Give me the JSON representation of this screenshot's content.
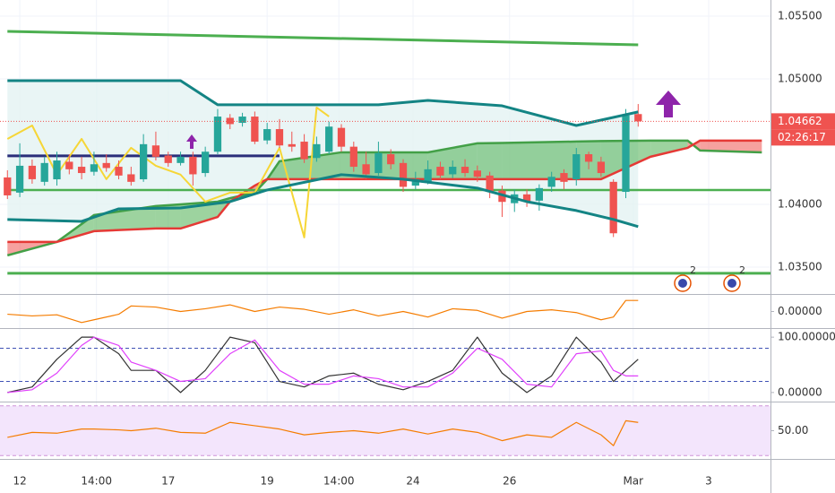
{
  "x_axis": {
    "xlim": [
      -0.6,
      61.7
    ],
    "ticks": [
      {
        "value": 1,
        "label": "12"
      },
      {
        "value": 7.2,
        "label": "14:00"
      },
      {
        "value": 13,
        "label": "17"
      },
      {
        "value": 21,
        "label": "19"
      },
      {
        "value": 26.8,
        "label": "14:00"
      },
      {
        "value": 32.8,
        "label": "24"
      },
      {
        "value": 40.6,
        "label": "26"
      },
      {
        "value": 50.6,
        "label": "Mar"
      },
      {
        "value": 56.7,
        "label": "3"
      }
    ]
  },
  "chart_data": [
    {
      "type": "candlestick",
      "ylim": [
        1.03286,
        1.05629
      ],
      "grid": true,
      "yticks": [
        {
          "value": 1.055,
          "label": "1.05500"
        },
        {
          "value": 1.05,
          "label": "1.05000"
        },
        {
          "value": 1.04,
          "label": "1.04000"
        },
        {
          "value": 1.035,
          "label": "1.03500"
        }
      ],
      "up_color": "#26a69a",
      "down_color": "#ef5350",
      "open": [
        1.04215,
        1.04094,
        1.04308,
        1.0418,
        1.042,
        1.0434,
        1.043,
        1.0426,
        1.0433,
        1.043,
        1.0424,
        1.042,
        1.0447,
        1.0439,
        1.0433,
        1.0438,
        1.0425,
        1.0442,
        1.0469,
        1.0465,
        1.047,
        1.0451,
        1.046,
        1.0448,
        1.045,
        1.0437,
        1.0442,
        1.0461,
        1.0446,
        1.0432,
        1.0425,
        1.044,
        1.0433,
        1.0415,
        1.0418,
        1.043,
        1.0424,
        1.043,
        1.0427,
        1.0423,
        1.0411,
        1.0401,
        1.0408,
        1.0403,
        1.0414,
        1.0425,
        1.042,
        1.044,
        1.0434,
        1.0418,
        1.041,
        1.0472
      ],
      "close": [
        1.04072,
        1.04308,
        1.04201,
        1.0433,
        1.0435,
        1.0428,
        1.0425,
        1.0432,
        1.0429,
        1.0423,
        1.0418,
        1.0448,
        1.0438,
        1.0433,
        1.0438,
        1.0424,
        1.0442,
        1.047,
        1.0464,
        1.047,
        1.045,
        1.046,
        1.0447,
        1.0446,
        1.0436,
        1.0448,
        1.0462,
        1.0446,
        1.043,
        1.0424,
        1.0441,
        1.0432,
        1.0414,
        1.042,
        1.0428,
        1.0423,
        1.043,
        1.0425,
        1.0422,
        1.041,
        1.0402,
        1.0408,
        1.0402,
        1.0413,
        1.0422,
        1.0418,
        1.044,
        1.0434,
        1.0425,
        1.0377,
        1.0471,
        1.04662
      ],
      "high": [
        1.04272,
        1.04487,
        1.04358,
        1.0438,
        1.0442,
        1.044,
        1.0438,
        1.0442,
        1.044,
        1.0435,
        1.043,
        1.0456,
        1.0458,
        1.0442,
        1.0442,
        1.0442,
        1.0446,
        1.0476,
        1.0472,
        1.0473,
        1.0474,
        1.0465,
        1.0468,
        1.0458,
        1.0456,
        1.0454,
        1.0466,
        1.0464,
        1.045,
        1.0442,
        1.045,
        1.0444,
        1.0436,
        1.0426,
        1.0435,
        1.0434,
        1.0435,
        1.0436,
        1.0431,
        1.0426,
        1.0415,
        1.0412,
        1.0412,
        1.0416,
        1.0426,
        1.0428,
        1.0445,
        1.0442,
        1.0438,
        1.042,
        1.0476,
        1.048
      ],
      "low": [
        1.04043,
        1.04058,
        1.04165,
        1.0415,
        1.0415,
        1.0424,
        1.042,
        1.0423,
        1.0426,
        1.042,
        1.0415,
        1.0418,
        1.0435,
        1.043,
        1.0431,
        1.0415,
        1.0422,
        1.044,
        1.046,
        1.0462,
        1.0448,
        1.0448,
        1.0445,
        1.0442,
        1.0433,
        1.0434,
        1.044,
        1.0442,
        1.0426,
        1.042,
        1.0423,
        1.0428,
        1.041,
        1.0412,
        1.0416,
        1.042,
        1.0421,
        1.0422,
        1.0418,
        1.0405,
        1.039,
        1.0394,
        1.0398,
        1.0395,
        1.041,
        1.0412,
        1.0415,
        1.0428,
        1.0422,
        1.0374,
        1.0405,
        1.0462
      ],
      "band_fill_color": "#e3f3f2",
      "lines": [
        {
          "color": "#138484",
          "width": 3,
          "x": [
            0,
            14,
            17,
            30,
            34,
            40,
            46,
            51
          ],
          "values": [
            1.04986,
            1.04986,
            1.04794,
            1.04794,
            1.04829,
            1.04786,
            1.04629,
            1.04737
          ]
        },
        {
          "color": "#138484",
          "width": 3,
          "x": [
            0,
            6,
            9,
            14,
            18,
            21,
            27,
            32,
            38,
            42,
            46,
            49,
            51
          ],
          "values": [
            1.0388,
            1.03865,
            1.03965,
            1.03972,
            1.04022,
            1.04115,
            1.04237,
            1.04201,
            1.0413,
            1.04022,
            1.03951,
            1.0388,
            1.03823
          ]
        },
        {
          "color": "#4caf50",
          "width": 3,
          "x": [
            0,
            51
          ],
          "values": [
            1.05379,
            1.05272
          ]
        },
        {
          "color": "#4caf50",
          "width": 2.5,
          "x": [
            0,
            61.7
          ],
          "values": [
            1.04115,
            1.04115
          ]
        },
        {
          "color": "#4caf50",
          "width": 3,
          "x": [
            0,
            61.7
          ],
          "values": [
            1.03451,
            1.03451
          ]
        },
        {
          "color": "#2a2e7a",
          "width": 3,
          "x": [
            0,
            22
          ],
          "values": [
            1.04387,
            1.04387
          ]
        },
        {
          "color": "#f6d636",
          "width": 2,
          "x": [
            0,
            2,
            4,
            6,
            8,
            10,
            12,
            14,
            16,
            18,
            20,
            22,
            24,
            25,
            26
          ],
          "values": [
            1.04522,
            1.04629,
            1.04237,
            1.04522,
            1.04201,
            1.04451,
            1.04308,
            1.04237,
            1.04022,
            1.04094,
            1.04094,
            1.04451,
            1.03737,
            1.04772,
            1.04701
          ]
        }
      ],
      "cloud": {
        "color_up": "#4caf50",
        "color_down": "#ef5350",
        "line_a": "#43a047",
        "line_b": "#e53935",
        "x": [
          0,
          4,
          7,
          12,
          14,
          17,
          18,
          20,
          21,
          22,
          27,
          34,
          38,
          40,
          46,
          48,
          52,
          55,
          56,
          61
        ],
        "span_a": [
          1.03594,
          1.03701,
          1.03915,
          1.03987,
          1.04,
          1.04022,
          1.0405,
          1.04094,
          1.042,
          1.04344,
          1.04415,
          1.04415,
          1.04487,
          1.0449,
          1.04501,
          1.04505,
          1.04508,
          1.04508,
          1.0443,
          1.04415
        ],
        "span_b": [
          1.03701,
          1.03701,
          1.03787,
          1.03808,
          1.03808,
          1.039,
          1.04022,
          1.0415,
          1.04201,
          1.04201,
          1.04201,
          1.04201,
          1.04201,
          1.04201,
          1.04201,
          1.04201,
          1.0438,
          1.04451,
          1.04508,
          1.04508
        ]
      },
      "last_price": 1.04662,
      "countdown": "02:26:17",
      "events": [
        "2",
        "2"
      ]
    },
    {
      "type": "line",
      "ylim": [
        -0.0003,
        0.0003
      ],
      "yticks": [
        {
          "value": 0,
          "label": "0.00000"
        }
      ],
      "series": [
        {
          "color": "#f57c00",
          "x": [
            0,
            2,
            4,
            6,
            7,
            9,
            10,
            12,
            14,
            16,
            18,
            20,
            22,
            24,
            26,
            28,
            30,
            32,
            34,
            36,
            38,
            40,
            42,
            44,
            46,
            48,
            49,
            50,
            51
          ],
          "values": [
            -5e-05,
            -8e-05,
            -6e-05,
            -0.0002,
            -0.00015,
            -5e-05,
            0.0001,
            8e-05,
            0,
            5e-05,
            0.00012,
            0,
            8e-05,
            4e-05,
            -5e-05,
            3e-05,
            -8e-05,
            0,
            -0.0001,
            5e-05,
            2e-05,
            -0.00012,
            0,
            3e-05,
            -2e-05,
            -0.00015,
            -0.0001,
            0.0002,
            0.0002
          ]
        }
      ]
    },
    {
      "type": "line",
      "ylim": [
        -16.4,
        114.8
      ],
      "yticks": [
        {
          "value": 100,
          "label": "100.00000"
        },
        {
          "value": 0,
          "label": "0.00000"
        }
      ],
      "levels": [
        80,
        20
      ],
      "level_color": "#3f51b5",
      "series": [
        {
          "color": "#333333",
          "x": [
            0,
            2,
            4,
            6,
            7,
            9,
            10,
            12,
            14,
            16,
            18,
            20,
            22,
            24,
            26,
            28,
            30,
            32,
            34,
            36,
            38,
            40,
            42,
            44,
            46,
            48,
            49,
            50,
            51
          ],
          "values": [
            0,
            10,
            60,
            100,
            100,
            70,
            40,
            40,
            0,
            40,
            100,
            90,
            20,
            10,
            30,
            35,
            15,
            5,
            20,
            40,
            100,
            35,
            0,
            30,
            100,
            55,
            20,
            40,
            60
          ]
        },
        {
          "color": "#e040fb",
          "x": [
            0,
            2,
            4,
            6,
            7,
            9,
            10,
            12,
            14,
            16,
            18,
            20,
            22,
            24,
            26,
            28,
            30,
            32,
            34,
            36,
            38,
            40,
            42,
            44,
            46,
            48,
            49,
            50,
            51
          ],
          "values": [
            0,
            5,
            35,
            85,
            100,
            85,
            55,
            40,
            20,
            25,
            70,
            95,
            40,
            15,
            15,
            30,
            25,
            10,
            10,
            35,
            80,
            60,
            15,
            10,
            70,
            75,
            40,
            30,
            30
          ]
        }
      ]
    },
    {
      "type": "line",
      "ylim": [
        16,
        84
      ],
      "yticks": [
        {
          "value": 50,
          "label": "50.00"
        }
      ],
      "band": [
        20,
        80
      ],
      "band_color": "#f3e5fc",
      "series": [
        {
          "color": "#f57c00",
          "x": [
            0,
            2,
            4,
            6,
            7,
            9,
            10,
            12,
            14,
            16,
            18,
            20,
            22,
            24,
            26,
            28,
            30,
            32,
            34,
            36,
            38,
            40,
            42,
            44,
            46,
            48,
            49,
            50,
            51
          ],
          "values": [
            42,
            48,
            47,
            52,
            52,
            51,
            50,
            53,
            48,
            47,
            60,
            56,
            52,
            45,
            48,
            50,
            47,
            52,
            46,
            52,
            48,
            38,
            45,
            42,
            60,
            45,
            32,
            62,
            60
          ]
        }
      ]
    }
  ]
}
